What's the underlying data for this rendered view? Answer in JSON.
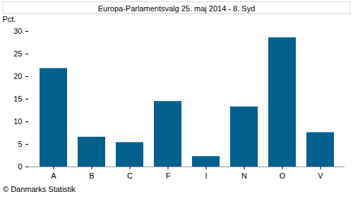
{
  "chart_data": {
    "type": "bar",
    "title": "Europa-Parlamentsvalg 25. maj 2014 - 8. Syd",
    "y_label": "Pct.",
    "caption": "© Danmarks Statistik",
    "categories": [
      "A",
      "B",
      "C",
      "F",
      "I",
      "N",
      "O",
      "V"
    ],
    "values": [
      21.8,
      6.6,
      5.4,
      14.5,
      2.3,
      13.3,
      28.6,
      7.6
    ],
    "color": "#02608c",
    "ylim": [
      0,
      30
    ],
    "yticks": [
      0,
      5,
      10,
      15,
      20,
      25,
      30
    ],
    "grid": false
  }
}
